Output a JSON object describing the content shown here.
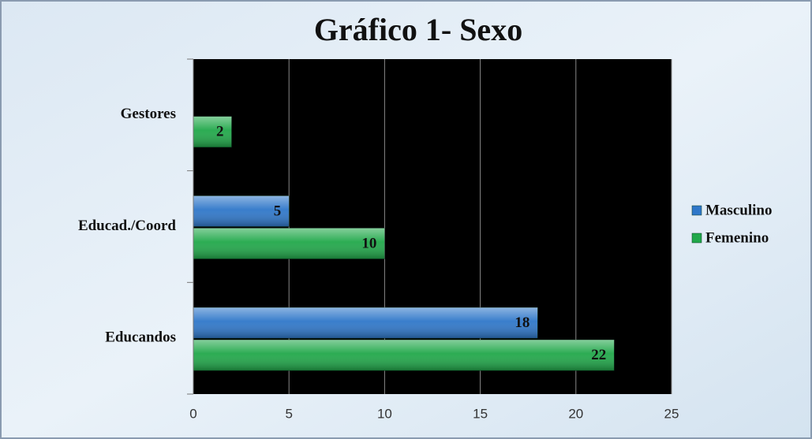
{
  "chart_data": {
    "type": "hbar",
    "title": "Gráfico 1- Sexo",
    "categories": [
      "Gestores",
      "Educad./Coord",
      "Educandos"
    ],
    "series": [
      {
        "name": "Masculino",
        "color": "#2f77c9",
        "values": [
          null,
          5,
          18
        ]
      },
      {
        "name": "Femenino",
        "color": "#21a84a",
        "values": [
          2,
          10,
          22
        ]
      }
    ],
    "xlim": [
      0,
      25
    ],
    "xticks": [
      0,
      5,
      10,
      15,
      20,
      25
    ],
    "grid": true,
    "legend": "right"
  }
}
